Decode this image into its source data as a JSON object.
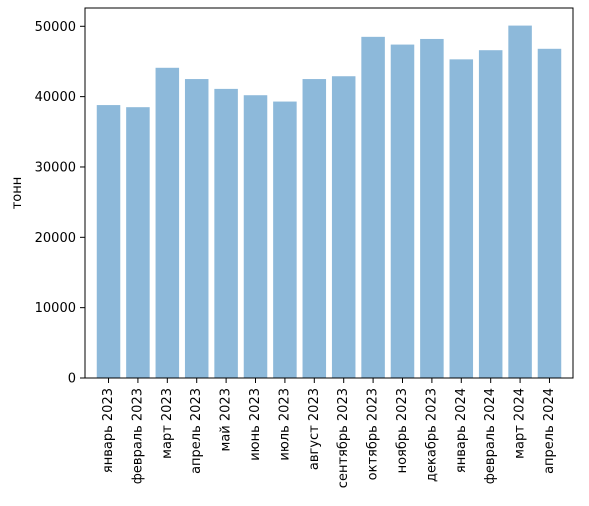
{
  "chart_data": {
    "type": "bar",
    "title": "",
    "xlabel": "",
    "ylabel": "тонн",
    "categories": [
      "январь 2023",
      "февраль 2023",
      "март 2023",
      "апрель 2023",
      "май 2023",
      "июнь 2023",
      "июль 2023",
      "август 2023",
      "сентябрь 2023",
      "октябрь 2023",
      "ноябрь 2023",
      "декабрь 2023",
      "январь 2024",
      "февраль 2024",
      "март 2024",
      "апрель 2024"
    ],
    "values": [
      38800,
      38500,
      44100,
      42500,
      41100,
      40200,
      39300,
      42500,
      42900,
      48500,
      47400,
      48200,
      45300,
      46600,
      50100,
      46800
    ],
    "ylim": [
      0,
      52600
    ],
    "yticks": [
      0,
      10000,
      20000,
      30000,
      40000,
      50000
    ],
    "grid": false,
    "bar_color": "#8db9da",
    "axis_color": "#000000"
  }
}
